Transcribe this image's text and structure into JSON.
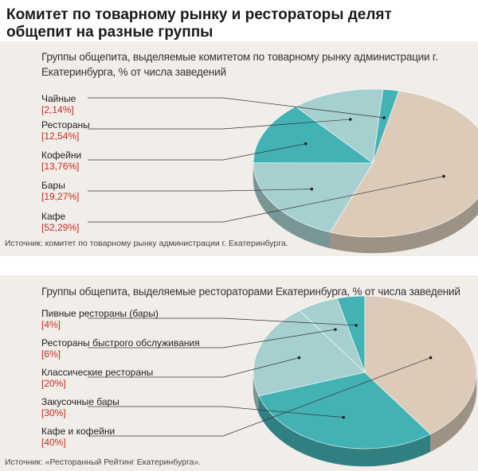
{
  "title": "Комитет по товарному рынку и рестораторы делят общепит на разные группы",
  "colors": {
    "light": "#a6d0d0",
    "teal": "#43b2b5",
    "beige": "#dccbb8",
    "red": "#cc2a1e",
    "band": "#f1eeea"
  },
  "chart_data": [
    {
      "type": "pie",
      "title": "Группы общепита, выделяемые комитетом по товарному рынку администрации г. Екатеринбурга, % от числа заведений",
      "source": "Источник: комитет по товарному рынку администрации г. Екатеринбурга.",
      "slices": [
        {
          "name": "Чайные",
          "value": 2.14,
          "label": "[2,14%]",
          "color": "#43b2b5"
        },
        {
          "name": "Рестораны",
          "value": 12.54,
          "label": "[12,54%]",
          "color": "#a6d0d0"
        },
        {
          "name": "Кофейни",
          "value": 13.76,
          "label": "[13,76%]",
          "color": "#43b2b5"
        },
        {
          "name": "Бары",
          "value": 19.27,
          "label": "[19,27%]",
          "color": "#a6d0d0"
        },
        {
          "name": "Кафе",
          "value": 52.29,
          "label": "[52,29%]",
          "color": "#dccbb8"
        }
      ]
    },
    {
      "type": "pie",
      "title": "Группы общепита, выделяемые рестораторами Екатеринбурга, % от числа заведений",
      "source": "Источник: «Ресторанный Рейтинг Екатеринбурга».",
      "slices": [
        {
          "name": "Пивные рестораны (бары)",
          "value": 4,
          "label": "[4%]",
          "color": "#43b2b5"
        },
        {
          "name": "Рестораны быстрого обслуживания",
          "value": 6,
          "label": "[6%]",
          "color": "#a6d0d0"
        },
        {
          "name": "Классические рестораны",
          "value": 20,
          "label": "[20%]",
          "color": "#a6d0d0"
        },
        {
          "name": "Закусочные бары",
          "value": 30,
          "label": "[30%]",
          "color": "#43b2b5"
        },
        {
          "name": "Кафе и кофейни",
          "value": 40,
          "label": "[40%]",
          "color": "#dccbb8"
        }
      ]
    }
  ]
}
